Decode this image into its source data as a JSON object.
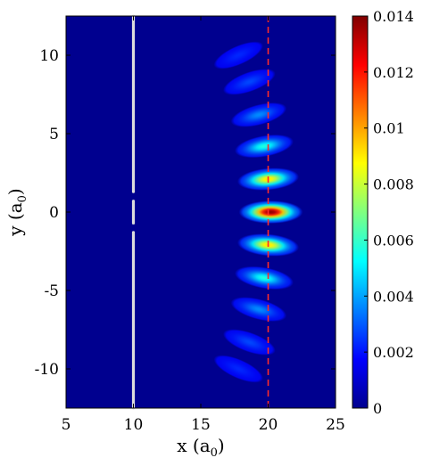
{
  "chart_data": {
    "type": "heatmap",
    "title": "",
    "xlabel": "x (a",
    "xlabel_sub": "0",
    "xlabel_close": ")",
    "ylabel": "y (a",
    "ylabel_sub": "0",
    "ylabel_close": ")",
    "xlim": [
      5,
      25
    ],
    "ylim": [
      -12.5,
      12.5
    ],
    "x_ticks": [
      5,
      10,
      15,
      20,
      25
    ],
    "x_tick_labels": [
      "5",
      "10",
      "15",
      "20",
      "25"
    ],
    "y_ticks": [
      10,
      5,
      0,
      -5,
      -10
    ],
    "y_tick_labels": [
      "10",
      "5",
      "0",
      "-5",
      "-10"
    ],
    "colorbar": {
      "colormap": "jet",
      "clim": [
        0,
        0.014
      ],
      "ticks": [
        0.014,
        0.012,
        0.01,
        0.008,
        0.006,
        0.004,
        0.002,
        0
      ],
      "tick_labels": [
        "0.014",
        "0.012",
        "0.01",
        "0.008",
        "0.006",
        "0.004",
        "0.002",
        "0"
      ]
    },
    "background_value": 0,
    "lobes": [
      {
        "x": 20.2,
        "y": 0.0,
        "value": 0.0138
      },
      {
        "x": 20.0,
        "y": 2.1,
        "value": 0.0085
      },
      {
        "x": 20.0,
        "y": -2.1,
        "value": 0.0085
      },
      {
        "x": 19.7,
        "y": 4.2,
        "value": 0.0045
      },
      {
        "x": 19.7,
        "y": -4.2,
        "value": 0.0045
      },
      {
        "x": 19.3,
        "y": 6.2,
        "value": 0.0022
      },
      {
        "x": 19.3,
        "y": -6.2,
        "value": 0.0022
      },
      {
        "x": 18.6,
        "y": 8.3,
        "value": 0.0011
      },
      {
        "x": 18.6,
        "y": -8.3,
        "value": 0.0011
      },
      {
        "x": 17.8,
        "y": 10.0,
        "value": 0.0006
      },
      {
        "x": 17.8,
        "y": -10.0,
        "value": 0.0006
      }
    ],
    "barrier": {
      "x": 10,
      "color": "#dcdcdc",
      "segments": [
        [
          -12.5,
          -1.3
        ],
        [
          -0.7,
          0.7
        ],
        [
          1.3,
          12.5
        ]
      ]
    },
    "reference_line": {
      "x": 20,
      "color": "#ff2a2a",
      "style": "dashed"
    }
  }
}
